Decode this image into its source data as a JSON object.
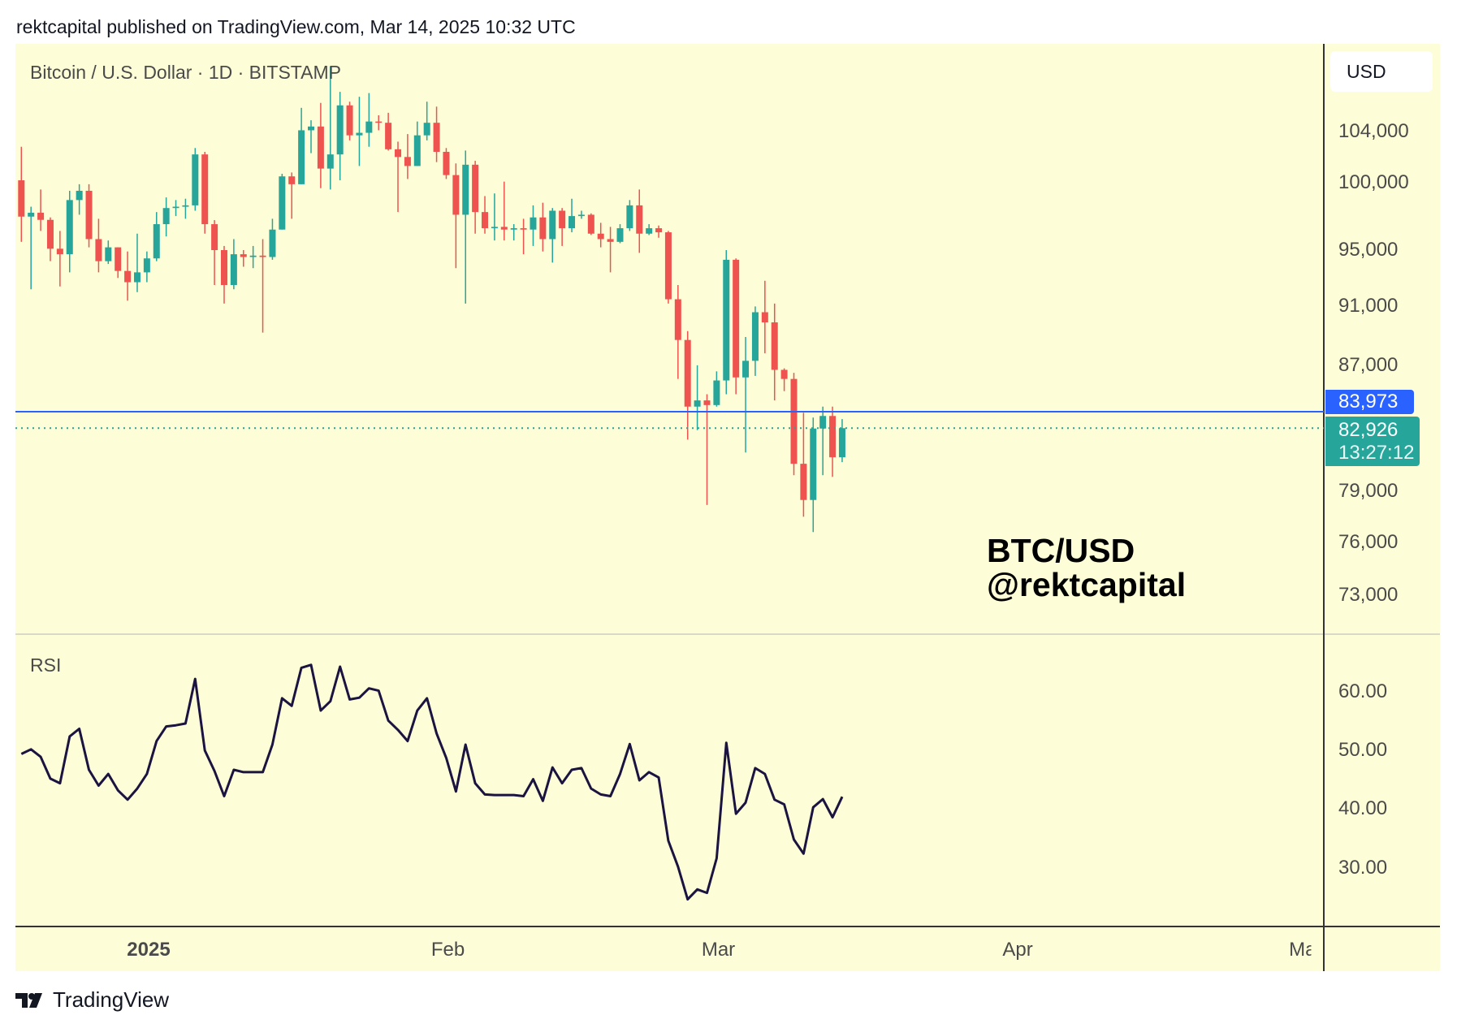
{
  "header": {
    "published": "rektcapital published on TradingView.com, Mar 14, 2025 10:32 UTC"
  },
  "chart_title": "Bitcoin / U.S. Dollar · 1D · BITSTAMP",
  "currency": "USD",
  "watermark": {
    "line1": "BTC/USD",
    "line2": "@rektcapital"
  },
  "footer": {
    "logo_text": "TradingView"
  },
  "colors": {
    "up": "#26a69a",
    "down": "#ef5350",
    "bg": "#fdfdd7",
    "hline": "#2962ff",
    "rsi": "#1b1340"
  },
  "chart_data": [
    {
      "type": "candlestick",
      "title": "Bitcoin / U.S. Dollar · 1D · BITSTAMP",
      "scale": "log",
      "ylim": [
        70000,
        112000
      ],
      "yticks": [
        "104,000",
        "100,000",
        "95,000",
        "91,000",
        "87,000",
        "79,000",
        "76,000",
        "73,000"
      ],
      "ytick_values": [
        104000,
        100000,
        95000,
        91000,
        87000,
        79000,
        76000,
        73000
      ],
      "start_date": "2024-12-19",
      "end_date": "2025-03-14",
      "xticks": [
        {
          "label": "2025",
          "day": 0
        },
        {
          "label": "Feb",
          "day": 31
        },
        {
          "label": "Mar",
          "day": 59
        },
        {
          "label": "Apr",
          "day": 90
        },
        {
          "label": "May",
          "day": 120
        }
      ],
      "horizontal_line": {
        "value": 83973,
        "label": "83,973"
      },
      "last_price": {
        "value": 82926,
        "label": "82,926",
        "countdown": "13:27:12"
      },
      "ohlc": [
        [
          100200,
          102800,
          95600,
          97460
        ],
        [
          97460,
          98200,
          92200,
          97750
        ],
        [
          97750,
          99500,
          96400,
          97220
        ],
        [
          97220,
          97400,
          94200,
          95100
        ],
        [
          95100,
          96400,
          92400,
          94700
        ],
        [
          94700,
          99400,
          93400,
          98700
        ],
        [
          98700,
          99900,
          97600,
          99400
        ],
        [
          99400,
          99900,
          95200,
          95800
        ],
        [
          95800,
          97300,
          93400,
          94200
        ],
        [
          94200,
          95700,
          94000,
          95200
        ],
        [
          95200,
          95200,
          93000,
          93500
        ],
        [
          93500,
          94900,
          91400,
          92700
        ],
        [
          92700,
          96200,
          92000,
          93400
        ],
        [
          93400,
          94900,
          92700,
          94400
        ],
        [
          94400,
          97800,
          94200,
          96900
        ],
        [
          96900,
          98900,
          96000,
          98100
        ],
        [
          98100,
          98700,
          97500,
          98200
        ],
        [
          98200,
          98800,
          97300,
          98300
        ],
        [
          98300,
          102700,
          97900,
          102200
        ],
        [
          102200,
          102400,
          96200,
          96900
        ],
        [
          96900,
          97200,
          92500,
          95000
        ],
        [
          95000,
          95300,
          91200,
          92500
        ],
        [
          92500,
          95800,
          92200,
          94700
        ],
        [
          94700,
          95000,
          93800,
          94500
        ],
        [
          94500,
          95300,
          93700,
          94600
        ],
        [
          94600,
          95800,
          89200,
          94500
        ],
        [
          94500,
          97300,
          94300,
          96500
        ],
        [
          96500,
          100700,
          96500,
          100500
        ],
        [
          100500,
          100800,
          97300,
          99900
        ],
        [
          99900,
          105900,
          99900,
          104100
        ],
        [
          104100,
          104900,
          102300,
          104400
        ],
        [
          104400,
          106300,
          99600,
          101100
        ],
        [
          101100,
          109300,
          99500,
          102200
        ],
        [
          102200,
          107200,
          100200,
          106100
        ],
        [
          106100,
          106400,
          103300,
          103700
        ],
        [
          103700,
          106800,
          101300,
          103900
        ],
        [
          103900,
          107100,
          102800,
          104800
        ],
        [
          104800,
          105300,
          104100,
          104700
        ],
        [
          104700,
          105500,
          102500,
          102600
        ],
        [
          102600,
          103200,
          97800,
          102000
        ],
        [
          102000,
          103800,
          100300,
          101300
        ],
        [
          101300,
          104800,
          101300,
          103700
        ],
        [
          103700,
          106400,
          103300,
          104700
        ],
        [
          104700,
          106000,
          101600,
          102400
        ],
        [
          102400,
          102700,
          100300,
          100600
        ],
        [
          100600,
          101500,
          93700,
          97600
        ],
        [
          97600,
          102500,
          91200,
          101400
        ],
        [
          101400,
          101700,
          96200,
          97800
        ],
        [
          97800,
          99000,
          96200,
          96600
        ],
        [
          96600,
          99200,
          95700,
          96700
        ],
        [
          96700,
          100100,
          95700,
          96500
        ],
        [
          96500,
          96900,
          95700,
          96600
        ],
        [
          96600,
          97300,
          94700,
          96500
        ],
        [
          96500,
          98300,
          95300,
          97400
        ],
        [
          97400,
          98500,
          94900,
          95800
        ],
        [
          95800,
          98100,
          94100,
          97900
        ],
        [
          97900,
          98100,
          95300,
          96600
        ],
        [
          96600,
          98800,
          96300,
          97500
        ],
        [
          97500,
          97900,
          97300,
          97600
        ],
        [
          97600,
          97700,
          96100,
          96200
        ],
        [
          96200,
          97000,
          95200,
          95800
        ],
        [
          95800,
          96700,
          93400,
          95600
        ],
        [
          95600,
          96900,
          95500,
          96600
        ],
        [
          96600,
          98700,
          96400,
          98300
        ],
        [
          98300,
          99500,
          94800,
          96200
        ],
        [
          96200,
          96900,
          96100,
          96600
        ],
        [
          96600,
          96800,
          95900,
          96300
        ],
        [
          96300,
          96400,
          91200,
          91500
        ],
        [
          91500,
          92500,
          86100,
          88700
        ],
        [
          88700,
          89300,
          82200,
          84300
        ],
        [
          84300,
          87000,
          82800,
          84700
        ],
        [
          84700,
          85100,
          78200,
          84400
        ],
        [
          84400,
          86600,
          84300,
          86000
        ],
        [
          86000,
          95000,
          85100,
          94300
        ],
        [
          94300,
          94400,
          85100,
          86200
        ],
        [
          86200,
          88900,
          81400,
          87300
        ],
        [
          87300,
          91000,
          86300,
          90600
        ],
        [
          90600,
          92800,
          87800,
          89900
        ],
        [
          89900,
          91200,
          84700,
          86700
        ],
        [
          86700,
          86800,
          85300,
          86100
        ],
        [
          86100,
          86500,
          80000,
          80700
        ],
        [
          80700,
          83900,
          77500,
          78500
        ],
        [
          78500,
          83600,
          76600,
          82900
        ],
        [
          82900,
          84300,
          80000,
          83700
        ],
        [
          83700,
          84300,
          79900,
          81100
        ],
        [
          81100,
          83500,
          80800,
          82926
        ]
      ]
    },
    {
      "type": "line",
      "title": "RSI",
      "ylim": [
        20,
        68
      ],
      "yticks": [
        "60.00",
        "50.00",
        "40.00",
        "30.00"
      ],
      "ytick_values": [
        60,
        50,
        40,
        30
      ],
      "values": [
        49.4,
        50.2,
        48.9,
        45.2,
        44.4,
        52.4,
        53.7,
        46.7,
        44.0,
        46.0,
        43.2,
        41.6,
        43.5,
        46.0,
        51.6,
        54.1,
        54.3,
        54.6,
        62.2,
        50.0,
        46.5,
        42.2,
        46.7,
        46.3,
        46.3,
        46.3,
        51.0,
        58.9,
        57.6,
        64.1,
        64.6,
        56.8,
        58.4,
        64.3,
        58.7,
        59.0,
        60.6,
        60.2,
        55.1,
        53.5,
        51.6,
        56.8,
        58.9,
        52.9,
        48.7,
        43.0,
        51.0,
        44.4,
        42.5,
        42.4,
        42.4,
        42.4,
        42.2,
        45.1,
        41.4,
        47.1,
        44.4,
        46.7,
        47.0,
        43.5,
        42.5,
        42.2,
        46.0,
        51.1,
        44.9,
        46.3,
        45.4,
        34.6,
        30.2,
        24.6,
        26.3,
        25.7,
        31.6,
        51.3,
        39.2,
        41.1,
        47.0,
        46.0,
        41.6,
        40.8,
        34.8,
        32.4,
        40.3,
        41.7,
        38.6,
        42.1
      ]
    }
  ]
}
